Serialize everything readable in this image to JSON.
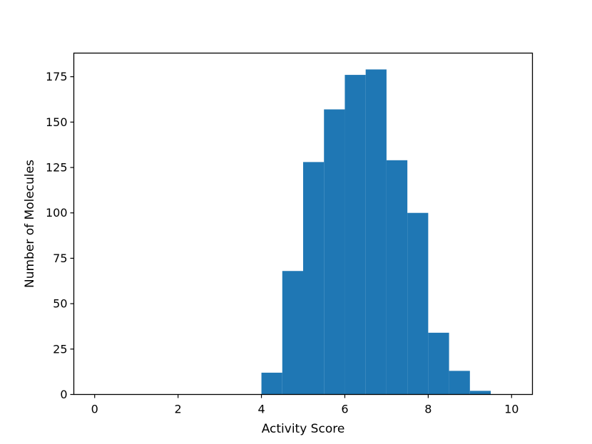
{
  "chart_data": {
    "type": "bar",
    "subtype": "histogram",
    "title": "",
    "xlabel": "Activity Score",
    "ylabel": "Number of Molecules",
    "xlim": [
      -0.5,
      10.5
    ],
    "ylim": [
      0,
      188
    ],
    "xticks": [
      0,
      2,
      4,
      6,
      8,
      10
    ],
    "yticks": [
      0,
      25,
      50,
      75,
      100,
      125,
      150,
      175
    ],
    "bar_color": "#1f77b4",
    "grid": false,
    "legend": "none",
    "bins": [
      {
        "x0": 0.0,
        "x1": 0.5,
        "count": 0
      },
      {
        "x0": 0.5,
        "x1": 1.0,
        "count": 0
      },
      {
        "x0": 1.0,
        "x1": 1.5,
        "count": 0
      },
      {
        "x0": 1.5,
        "x1": 2.0,
        "count": 0
      },
      {
        "x0": 2.0,
        "x1": 2.5,
        "count": 0
      },
      {
        "x0": 2.5,
        "x1": 3.0,
        "count": 0
      },
      {
        "x0": 3.0,
        "x1": 3.5,
        "count": 0
      },
      {
        "x0": 3.5,
        "x1": 4.0,
        "count": 0
      },
      {
        "x0": 4.0,
        "x1": 4.5,
        "count": 12
      },
      {
        "x0": 4.5,
        "x1": 5.0,
        "count": 68
      },
      {
        "x0": 5.0,
        "x1": 5.5,
        "count": 128
      },
      {
        "x0": 5.5,
        "x1": 6.0,
        "count": 157
      },
      {
        "x0": 6.0,
        "x1": 6.5,
        "count": 176
      },
      {
        "x0": 6.5,
        "x1": 7.0,
        "count": 179
      },
      {
        "x0": 7.0,
        "x1": 7.5,
        "count": 129
      },
      {
        "x0": 7.5,
        "x1": 8.0,
        "count": 100
      },
      {
        "x0": 8.0,
        "x1": 8.5,
        "count": 34
      },
      {
        "x0": 8.5,
        "x1": 9.0,
        "count": 13
      },
      {
        "x0": 9.0,
        "x1": 9.5,
        "count": 2
      },
      {
        "x0": 9.5,
        "x1": 10.0,
        "count": 0
      }
    ]
  }
}
